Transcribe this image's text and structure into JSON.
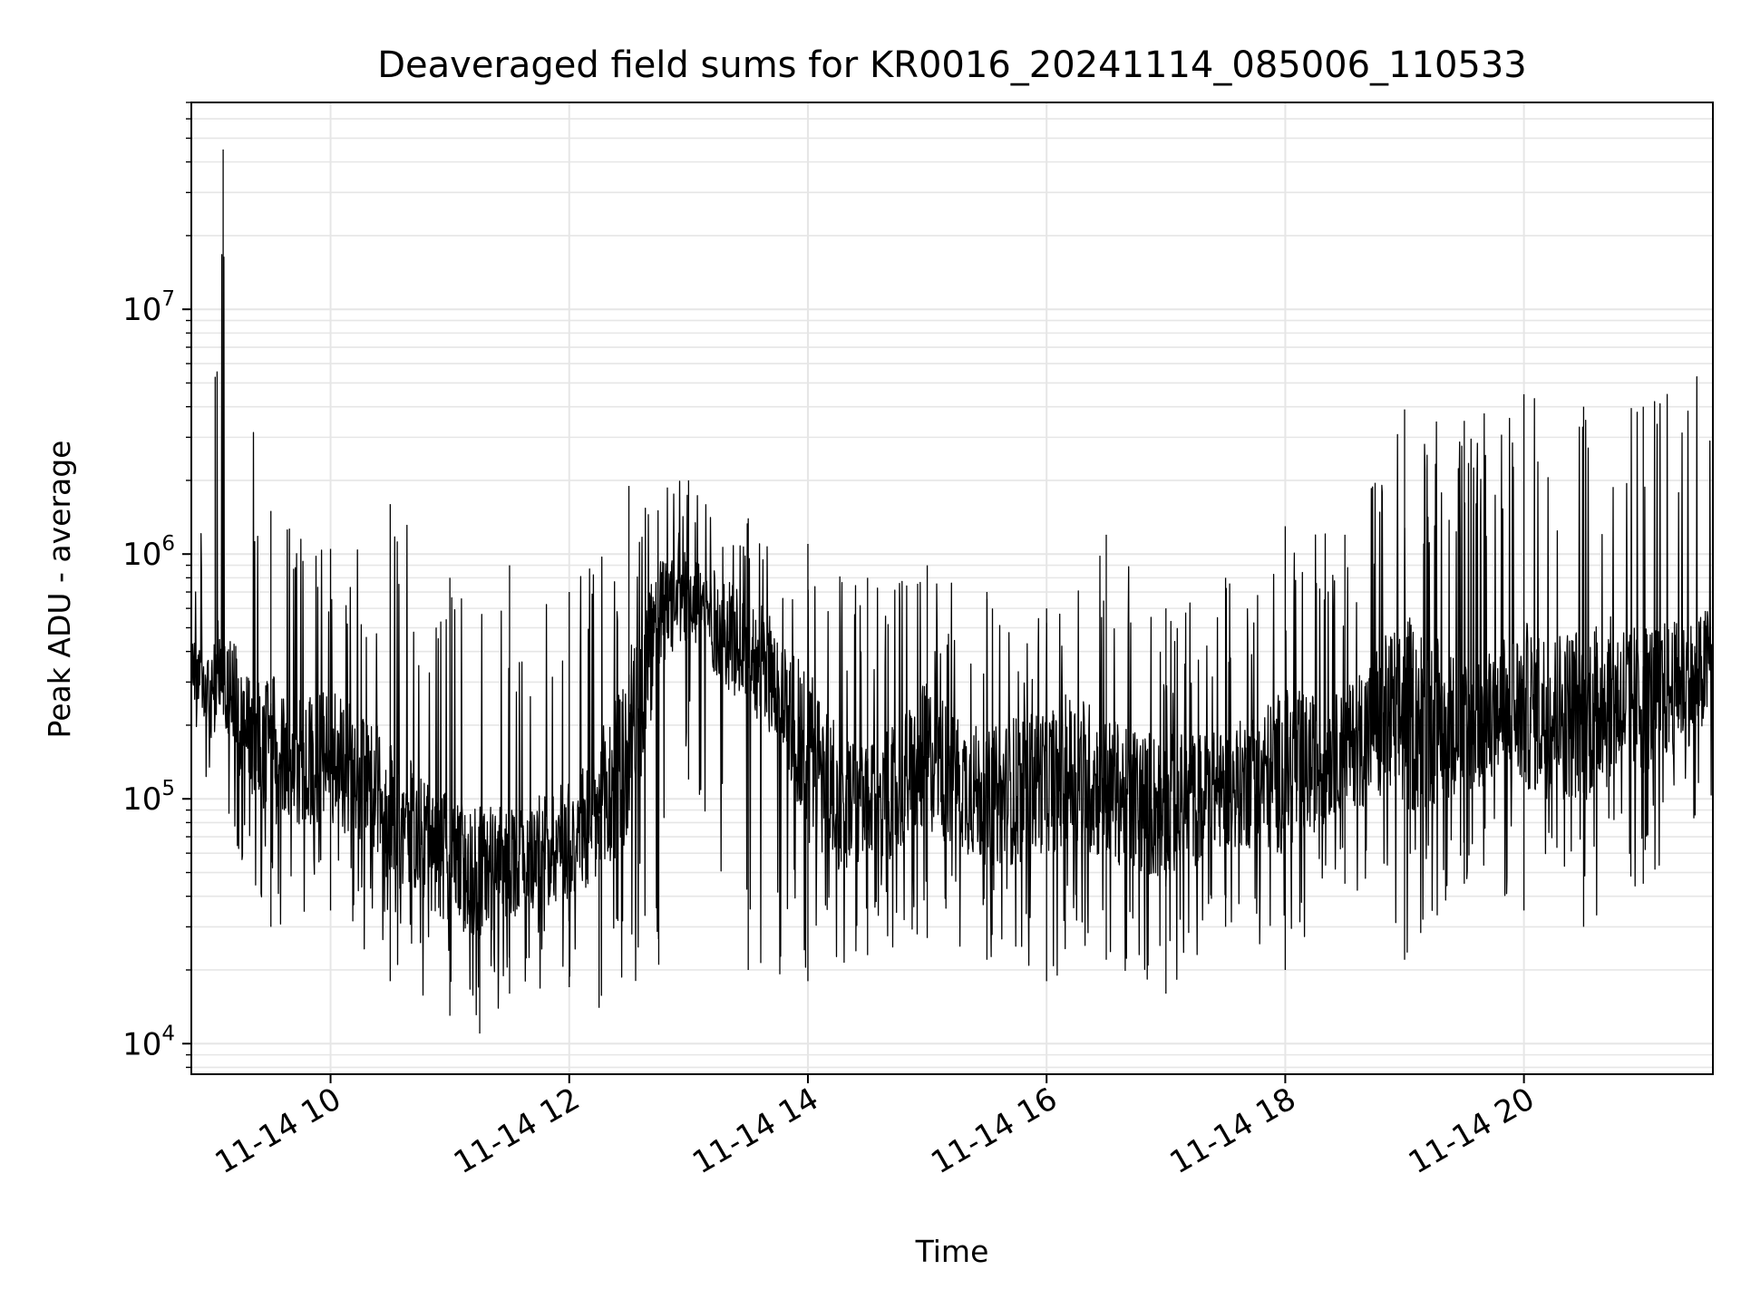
{
  "chart_data": {
    "type": "line",
    "title": "Deaveraged field sums for KR0016_20241114_085006_110533",
    "xlabel": "Time",
    "ylabel": "Peak ADU - average",
    "x_scale": "time",
    "y_scale": "log",
    "xlim": [
      "2024-11-14 08:50",
      "2024-11-14 21:35"
    ],
    "ylim": [
      7500,
      70000000
    ],
    "x_ticks": [
      {
        "value": "2024-11-14 10:00",
        "label": "11-14 10"
      },
      {
        "value": "2024-11-14 12:00",
        "label": "11-14 12"
      },
      {
        "value": "2024-11-14 14:00",
        "label": "11-14 14"
      },
      {
        "value": "2024-11-14 16:00",
        "label": "11-14 16"
      },
      {
        "value": "2024-11-14 18:00",
        "label": "11-14 18"
      },
      {
        "value": "2024-11-14 20:00",
        "label": "11-14 20"
      }
    ],
    "y_ticks": [
      {
        "value": 10000,
        "base": "10",
        "exp": "4"
      },
      {
        "value": 100000,
        "base": "10",
        "exp": "5"
      },
      {
        "value": 1000000,
        "base": "10",
        "exp": "6"
      },
      {
        "value": 10000000,
        "base": "10",
        "exp": "7"
      }
    ],
    "grid": true,
    "line_color": "#000000",
    "grid_color": "#e6e6e6",
    "series": [
      {
        "x": [
          "2024-11-14 08:50",
          "2024-11-14 09:00",
          "2024-11-14 09:06",
          "2024-11-14 09:15",
          "2024-11-14 09:30",
          "2024-11-14 09:45",
          "2024-11-14 10:00",
          "2024-11-14 10:15",
          "2024-11-14 10:30",
          "2024-11-14 10:45",
          "2024-11-14 11:00",
          "2024-11-14 11:15",
          "2024-11-14 11:30",
          "2024-11-14 11:45",
          "2024-11-14 12:00",
          "2024-11-14 12:15",
          "2024-11-14 12:30",
          "2024-11-14 12:45",
          "2024-11-14 13:00",
          "2024-11-14 13:15",
          "2024-11-14 13:30",
          "2024-11-14 13:45",
          "2024-11-14 14:00",
          "2024-11-14 14:15",
          "2024-11-14 14:30",
          "2024-11-14 14:45",
          "2024-11-14 15:00",
          "2024-11-14 15:15",
          "2024-11-14 15:30",
          "2024-11-14 15:45",
          "2024-11-14 16:00",
          "2024-11-14 16:15",
          "2024-11-14 16:30",
          "2024-11-14 16:45",
          "2024-11-14 17:00",
          "2024-11-14 17:15",
          "2024-11-14 17:30",
          "2024-11-14 17:45",
          "2024-11-14 18:00",
          "2024-11-14 18:15",
          "2024-11-14 18:30",
          "2024-11-14 18:45",
          "2024-11-14 19:00",
          "2024-11-14 19:15",
          "2024-11-14 19:30",
          "2024-11-14 19:45",
          "2024-11-14 20:00",
          "2024-11-14 20:15",
          "2024-11-14 20:30",
          "2024-11-14 20:45",
          "2024-11-14 21:00",
          "2024-11-14 21:15",
          "2024-11-14 21:30",
          "2024-11-14 21:35"
        ],
        "y": [
          350000,
          250000,
          400000,
          200000,
          160000,
          140000,
          150000,
          120000,
          90000,
          70000,
          55000,
          50000,
          55000,
          60000,
          70000,
          85000,
          150000,
          550000,
          700000,
          500000,
          400000,
          300000,
          150000,
          100000,
          90000,
          110000,
          150000,
          120000,
          100000,
          110000,
          120000,
          130000,
          110000,
          100000,
          90000,
          100000,
          110000,
          120000,
          130000,
          140000,
          160000,
          200000,
          220000,
          210000,
          200000,
          210000,
          240000,
          220000,
          230000,
          250000,
          260000,
          280000,
          320000,
          400000
        ]
      }
    ],
    "upper_envelope": [
      {
        "x": "2024-11-14 08:50",
        "y": 900000
      },
      {
        "x": "2024-11-14 09:02",
        "y": 5300000
      },
      {
        "x": "2024-11-14 09:06",
        "y": 45000000
      },
      {
        "x": "2024-11-14 09:30",
        "y": 1500000
      },
      {
        "x": "2024-11-14 10:00",
        "y": 1050000
      },
      {
        "x": "2024-11-14 10:30",
        "y": 1600000
      },
      {
        "x": "2024-11-14 11:00",
        "y": 800000
      },
      {
        "x": "2024-11-14 11:30",
        "y": 900000
      },
      {
        "x": "2024-11-14 12:00",
        "y": 700000
      },
      {
        "x": "2024-11-14 12:30",
        "y": 1900000
      },
      {
        "x": "2024-11-14 13:00",
        "y": 2000000
      },
      {
        "x": "2024-11-14 13:30",
        "y": 1400000
      },
      {
        "x": "2024-11-14 14:00",
        "y": 1100000
      },
      {
        "x": "2024-11-14 14:30",
        "y": 800000
      },
      {
        "x": "2024-11-14 15:00",
        "y": 900000
      },
      {
        "x": "2024-11-14 15:30",
        "y": 700000
      },
      {
        "x": "2024-11-14 16:00",
        "y": 600000
      },
      {
        "x": "2024-11-14 16:30",
        "y": 1200000
      },
      {
        "x": "2024-11-14 17:00",
        "y": 600000
      },
      {
        "x": "2024-11-14 17:30",
        "y": 800000
      },
      {
        "x": "2024-11-14 18:00",
        "y": 1300000
      },
      {
        "x": "2024-11-14 18:30",
        "y": 1200000
      },
      {
        "x": "2024-11-14 19:00",
        "y": 3900000
      },
      {
        "x": "2024-11-14 19:30",
        "y": 3500000
      },
      {
        "x": "2024-11-14 20:00",
        "y": 4500000
      },
      {
        "x": "2024-11-14 20:30",
        "y": 4000000
      },
      {
        "x": "2024-11-14 21:00",
        "y": 4000000
      },
      {
        "x": "2024-11-14 21:35",
        "y": 7000000
      }
    ],
    "lower_envelope": [
      {
        "x": "2024-11-14 08:50",
        "y": 170000
      },
      {
        "x": "2024-11-14 09:30",
        "y": 30000
      },
      {
        "x": "2024-11-14 10:00",
        "y": 35000
      },
      {
        "x": "2024-11-14 10:30",
        "y": 18000
      },
      {
        "x": "2024-11-14 11:00",
        "y": 13000
      },
      {
        "x": "2024-11-14 11:15",
        "y": 11000
      },
      {
        "x": "2024-11-14 11:30",
        "y": 16000
      },
      {
        "x": "2024-11-14 12:00",
        "y": 17000
      },
      {
        "x": "2024-11-14 12:15",
        "y": 14000
      },
      {
        "x": "2024-11-14 12:45",
        "y": 21000
      },
      {
        "x": "2024-11-14 13:00",
        "y": 120000
      },
      {
        "x": "2024-11-14 13:30",
        "y": 20000
      },
      {
        "x": "2024-11-14 14:00",
        "y": 18000
      },
      {
        "x": "2024-11-14 14:30",
        "y": 23000
      },
      {
        "x": "2024-11-14 15:00",
        "y": 27000
      },
      {
        "x": "2024-11-14 15:30",
        "y": 22000
      },
      {
        "x": "2024-11-14 16:00",
        "y": 18000
      },
      {
        "x": "2024-11-14 16:30",
        "y": 22000
      },
      {
        "x": "2024-11-14 17:00",
        "y": 16000
      },
      {
        "x": "2024-11-14 17:30",
        "y": 30000
      },
      {
        "x": "2024-11-14 18:00",
        "y": 20000
      },
      {
        "x": "2024-11-14 18:30",
        "y": 45000
      },
      {
        "x": "2024-11-14 19:00",
        "y": 22000
      },
      {
        "x": "2024-11-14 19:30",
        "y": 45000
      },
      {
        "x": "2024-11-14 20:00",
        "y": 35000
      },
      {
        "x": "2024-11-14 20:30",
        "y": 30000
      },
      {
        "x": "2024-11-14 21:00",
        "y": 45000
      },
      {
        "x": "2024-11-14 21:35",
        "y": 90000
      }
    ]
  }
}
